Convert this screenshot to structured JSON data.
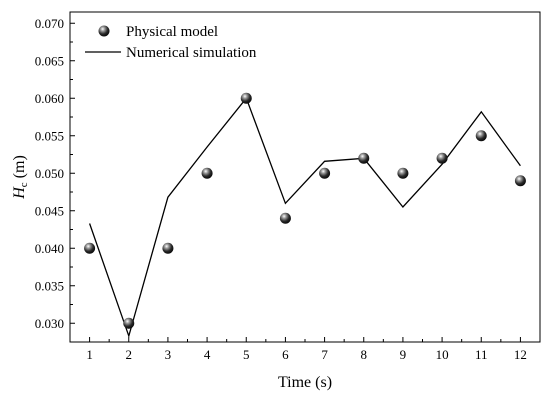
{
  "chart_data": {
    "type": "scatter",
    "title": "",
    "xlabel": "Time (s)",
    "ylabel_main": "H",
    "ylabel_sub": "c",
    "ylabel_unit": " (m)",
    "x_ticks": [
      1,
      2,
      3,
      4,
      5,
      6,
      7,
      8,
      9,
      10,
      11,
      12
    ],
    "y_ticks": [
      0.03,
      0.035,
      0.04,
      0.045,
      0.05,
      0.055,
      0.06,
      0.065,
      0.07
    ],
    "y_tick_labels": [
      "0.030",
      "0.035",
      "0.040",
      "0.045",
      "0.050",
      "0.055",
      "0.060",
      "0.065",
      "0.070"
    ],
    "xlim": [
      0.5,
      12.5
    ],
    "ylim": [
      0.0275,
      0.0715
    ],
    "grid": false,
    "legend_position": "top-left",
    "series": [
      {
        "name": "Physical model",
        "kind": "scatter",
        "x": [
          1,
          2,
          3,
          4,
          5,
          6,
          7,
          8,
          9,
          10,
          11,
          12
        ],
        "y": [
          0.04,
          0.03,
          0.04,
          0.05,
          0.06,
          0.044,
          0.05,
          0.052,
          0.05,
          0.052,
          0.055,
          0.049
        ]
      },
      {
        "name": "Numerical simulation",
        "kind": "line",
        "x": [
          1,
          2,
          3,
          4,
          5,
          6,
          7,
          8,
          9,
          10,
          11,
          12
        ],
        "y": [
          0.0433,
          0.0283,
          0.0468,
          0.0535,
          0.06,
          0.046,
          0.0516,
          0.052,
          0.0455,
          0.0512,
          0.0582,
          0.051
        ]
      }
    ]
  }
}
